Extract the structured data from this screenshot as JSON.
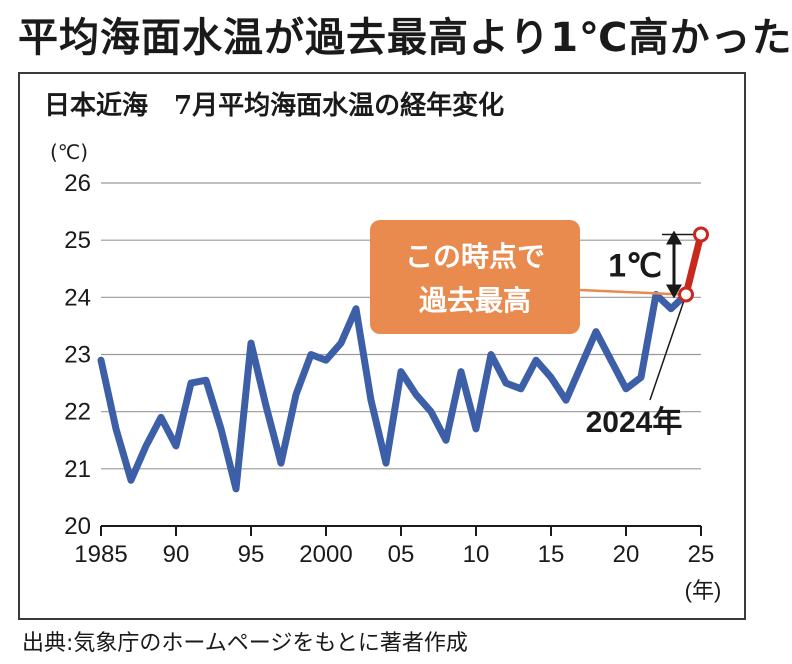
{
  "headline": "平均海面水温が過去最高より1℃高かった",
  "source": "出典:気象庁のホームページをもとに著者作成",
  "chart_data": {
    "type": "line",
    "title": "日本近海　7月平均海面水温の経年変化",
    "ylabel": "(℃)",
    "xlabel": "(年)",
    "ylim": [
      20,
      26
    ],
    "xlim": [
      1985,
      2025
    ],
    "y_ticks": [
      "20",
      "21",
      "22",
      "23",
      "24",
      "25",
      "26"
    ],
    "x_ticks": [
      {
        "value": 1985,
        "label": "1985"
      },
      {
        "value": 1990,
        "label": "90"
      },
      {
        "value": 1995,
        "label": "95"
      },
      {
        "value": 2000,
        "label": "2000"
      },
      {
        "value": 2005,
        "label": "05"
      },
      {
        "value": 2010,
        "label": "10"
      },
      {
        "value": 2015,
        "label": "15"
      },
      {
        "value": 2020,
        "label": "20"
      },
      {
        "value": 2025,
        "label": "25"
      }
    ],
    "grid": true,
    "series": [
      {
        "color": "#3d5fa8",
        "x": [
          1985,
          1986,
          1987,
          1988,
          1989,
          1990,
          1991,
          1992,
          1993,
          1994,
          1995,
          1996,
          1997,
          1998,
          1999,
          2000,
          2001,
          2002,
          2003,
          2004,
          2005,
          2006,
          2007,
          2008,
          2009,
          2010,
          2011,
          2012,
          2013,
          2014,
          2015,
          2016,
          2017,
          2018,
          2019,
          2020,
          2021,
          2022,
          2023,
          2024
        ],
        "y": [
          22.9,
          21.7,
          20.8,
          21.4,
          21.9,
          21.4,
          22.5,
          22.55,
          21.7,
          20.65,
          23.2,
          22.1,
          21.1,
          22.3,
          23.0,
          22.9,
          23.2,
          23.8,
          22.2,
          21.1,
          22.7,
          22.3,
          22.0,
          21.5,
          22.7,
          21.7,
          23.0,
          22.5,
          22.4,
          22.9,
          22.6,
          22.2,
          22.8,
          23.4,
          22.9,
          22.4,
          22.6,
          24.05,
          23.8,
          24.05
        ]
      },
      {
        "color": "#c8281e",
        "x": [
          2024,
          2025
        ],
        "y": [
          24.05,
          25.1
        ]
      }
    ],
    "annotations": {
      "callout": [
        "この時点で",
        "過去最高"
      ],
      "callout_color": "#e98a4e",
      "delta": "1℃",
      "year_label": "2024年"
    }
  }
}
